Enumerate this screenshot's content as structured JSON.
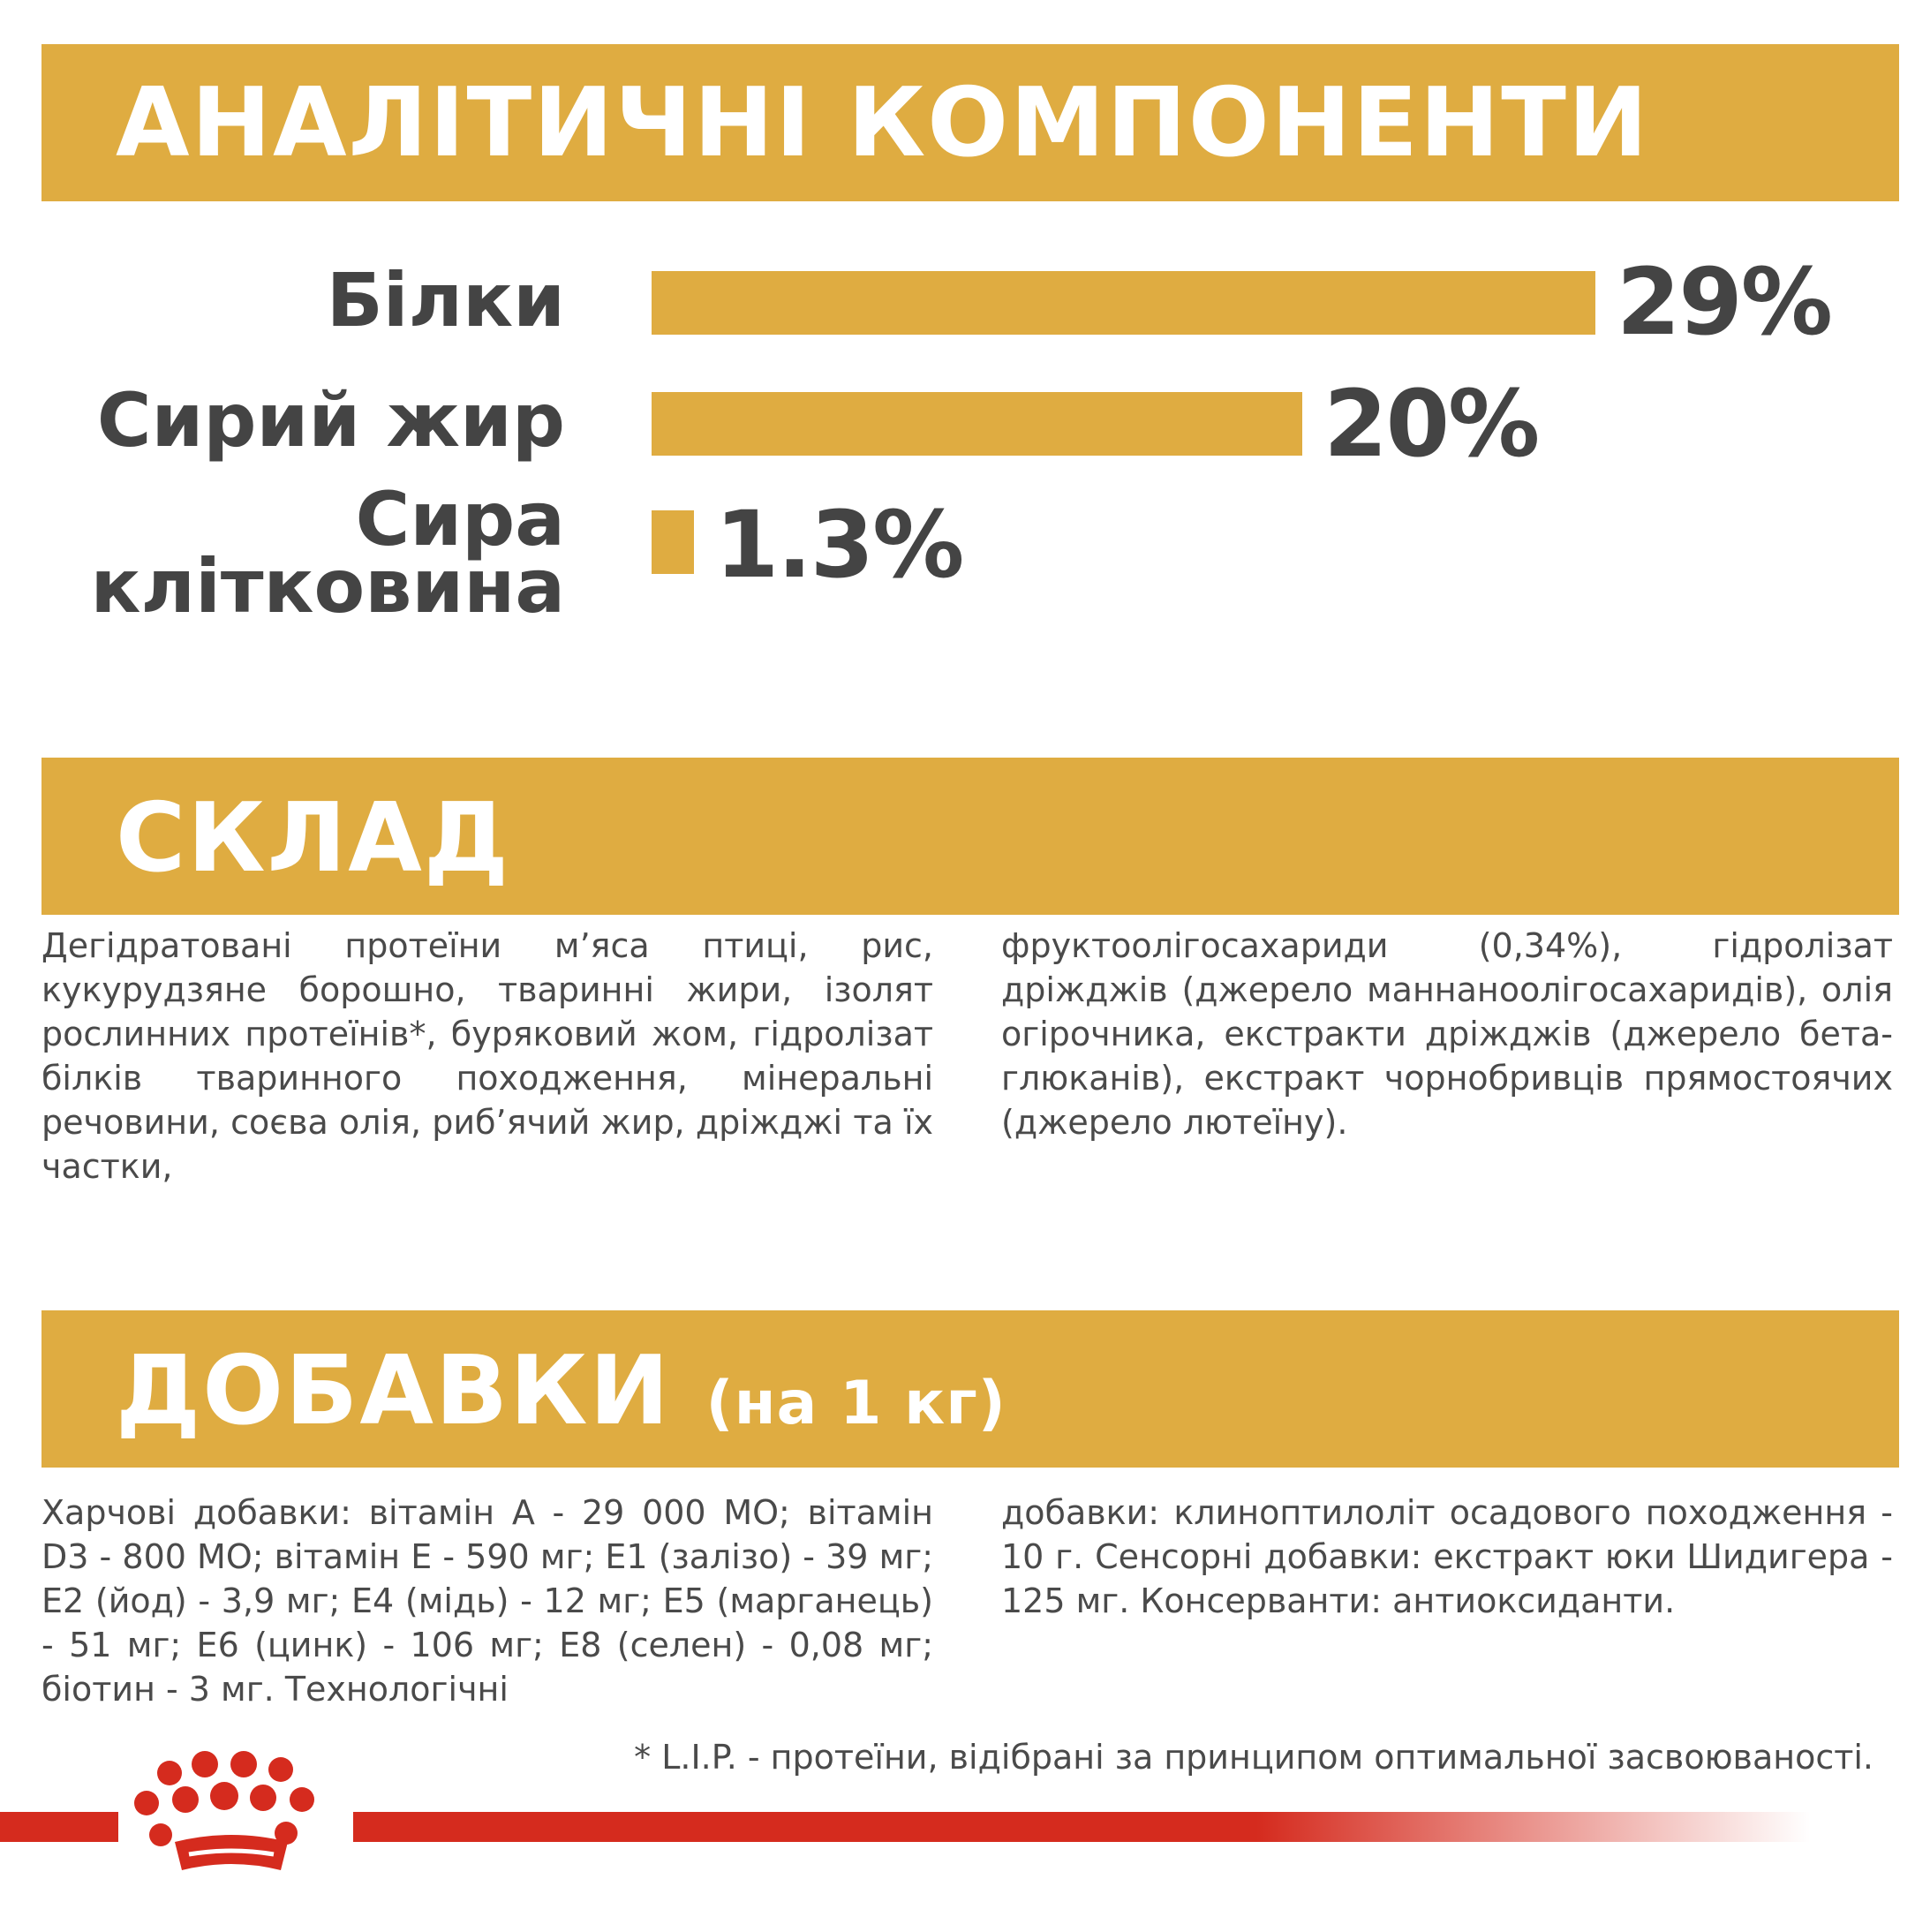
{
  "analytical": {
    "title": "АНАЛІТИЧНІ КОМПОНЕНТИ",
    "items": [
      {
        "label": "Білки",
        "value": 29,
        "value_label": "29%"
      },
      {
        "label": "Сирий жир",
        "value": 20,
        "value_label": "20%"
      },
      {
        "label_line1": "Сира",
        "label_line2": "клітковина",
        "value": 1.3,
        "value_label": "1.3%"
      }
    ]
  },
  "composition": {
    "title": "СКЛАД",
    "col1": "Дегідратовані протеїни м’яса птиці, рис, кукурудзяне борошно, тваринні жири, ізолят рослинних протеїнів*, буряковий жом, гідролізат білків тваринного походження, мінеральні речовини, соєва олія, риб’ячий жир, дріжджі та їх частки,",
    "col2": "фруктоолігосахариди (0,34%), гідролізат дріжджів (джерело маннаноолігосахаридів), олія огірочника, екстракти дріжджів (джерело бета-глюканів), екстракт чорнобривців прямостоячих (джерело лютеїну)."
  },
  "additives": {
    "title": "ДОБАВКИ",
    "subtitle": "(на 1 кг)",
    "col1": "Харчові добавки: вітамін А - 29 000 МО; вітамін D3 - 800 МО; вітамін Е - 590 мг; Е1 (залізо) - 39 мг; Е2 (йод) - 3,9 мг; Е4 (мідь) - 12 мг; Е5 (марганець) - 51 мг; Е6 (цинк) - 106 мг; Е8 (селен) - 0,08 мг; біотин - 3 мг. Технологічні",
    "col2": "добавки: клиноптилоліт осадового походження - 10 г. Сенсорні добавки: екстракт юки Шидигера - 125 мг. Консерванти: антиоксиданти."
  },
  "footnote": "* L.I.P. - протеїни, відібрані за принципом оптимальної засвоюваності.",
  "colors": {
    "accent": "#dfac41",
    "text": "#444444",
    "brand_red": "#d52b1e"
  },
  "logo": {
    "icon": "royal-canin-crown-icon"
  }
}
